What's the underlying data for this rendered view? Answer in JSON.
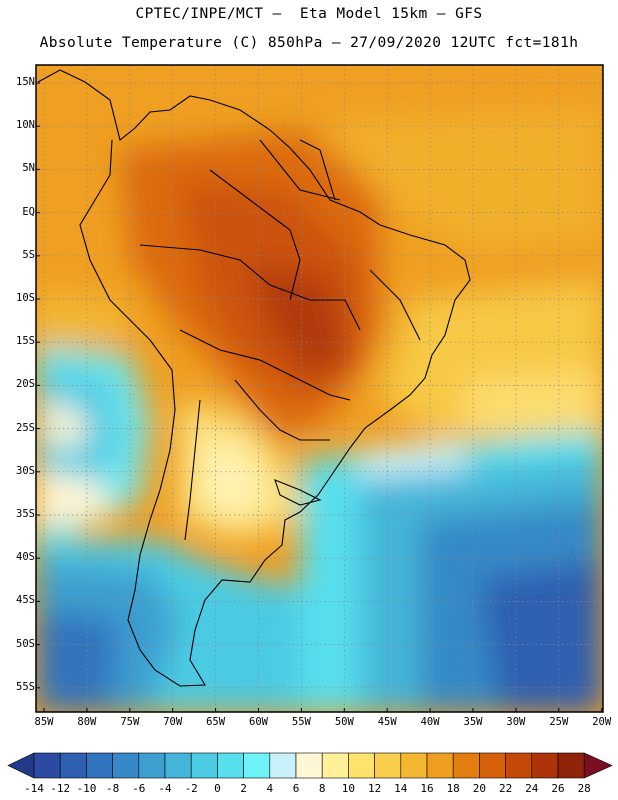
{
  "title": {
    "line1": "CPTEC/INPE/MCT –  Eta Model 15km – GFS",
    "line2": "Absolute Temperature (C) 850hPa – 27/09/2020 12UTC fct=181h"
  },
  "map": {
    "lat_labels": [
      "15N",
      "10N",
      "5N",
      "EQ",
      "5S",
      "10S",
      "15S",
      "20S",
      "25S",
      "30S",
      "35S",
      "40S",
      "45S",
      "50S",
      "55S"
    ],
    "lon_labels": [
      "85W",
      "80W",
      "75W",
      "70W",
      "65W",
      "60W",
      "55W",
      "50W",
      "45W",
      "40W",
      "35W",
      "30W",
      "25W",
      "20W"
    ]
  },
  "colorbar": {
    "labels": [
      "-14",
      "-12",
      "-10",
      "-8",
      "-6",
      "-4",
      "-2",
      "0",
      "2",
      "4",
      "6",
      "8",
      "10",
      "12",
      "14",
      "16",
      "18",
      "20",
      "22",
      "24",
      "26",
      "28"
    ],
    "colors": [
      "#2a4ba0",
      "#2e5fb0",
      "#3173bd",
      "#3689c6",
      "#3d9fd0",
      "#44b5d9",
      "#4ccbe3",
      "#57dfed",
      "#6ef4f7",
      "#c8f1fa",
      "#fff6d6",
      "#fff19a",
      "#fde26c",
      "#f9ce4c",
      "#f3b732",
      "#ee9f1f",
      "#e27e10",
      "#d7610a",
      "#c44808",
      "#ad3309",
      "#902209"
    ],
    "under_color": "#213a8a",
    "over_color": "#7a0f1f"
  }
}
